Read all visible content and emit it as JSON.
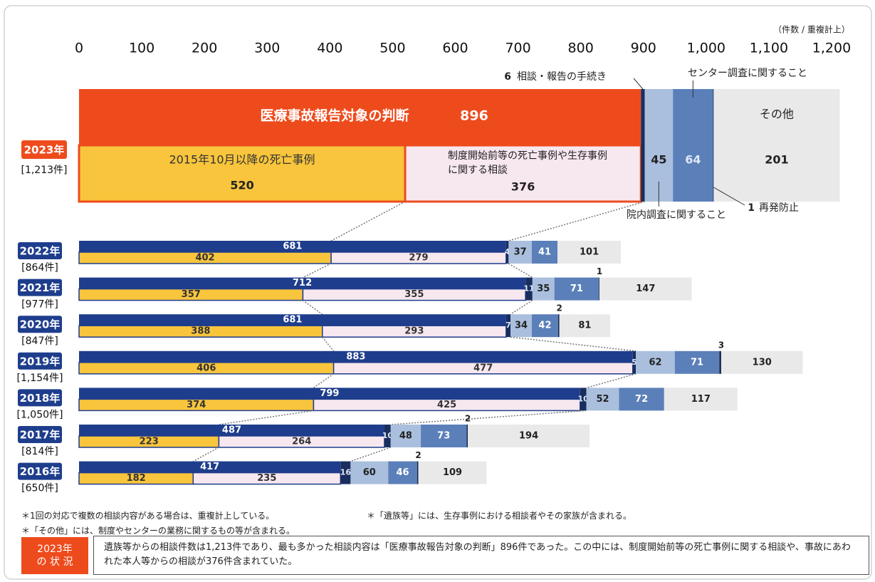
{
  "chart_data": {
    "type": "bar",
    "unit_label": "（件数 / 重複計上）",
    "xlim": [
      0,
      1200
    ],
    "xticks": [
      0,
      100,
      200,
      300,
      400,
      500,
      600,
      700,
      800,
      900,
      {
        "value": 1000,
        "label": "1,000"
      },
      {
        "value": 1100,
        "label": "1,100"
      },
      {
        "value": 1200,
        "label": "1,200"
      }
    ],
    "categories": [
      "2023年",
      "2022年",
      "2021年",
      "2020年",
      "2019年",
      "2018年",
      "2017年",
      "2016年"
    ],
    "count_labels": [
      "[1,213件]",
      "[864件]",
      "[977件]",
      "[847件]",
      "[1,154件]",
      "[1,050件]",
      "[814件]",
      "[650件]"
    ],
    "highlight_color": "#ee4b1d",
    "series": [
      {
        "name": "医療事故報告対象の判断",
        "color": "#1e3d8c",
        "values": [
          896,
          681,
          712,
          681,
          883,
          799,
          487,
          417
        ]
      },
      {
        "name": "2015年10月以降の死亡事例",
        "color": "#f8c53c",
        "values": [
          520,
          402,
          357,
          388,
          406,
          374,
          223,
          182
        ]
      },
      {
        "name": "制度開始前等の死亡事例や生存事例に関する相談",
        "color": "#f7e7ef",
        "values": [
          376,
          279,
          355,
          293,
          477,
          425,
          264,
          235
        ]
      },
      {
        "name": "相談・報告の手続き",
        "color": "#1a2e5e",
        "values": [
          6,
          4,
          11,
          7,
          5,
          10,
          10,
          16
        ]
      },
      {
        "name": "院内調査に関すること",
        "color": "#a9bfdd",
        "values": [
          45,
          37,
          35,
          34,
          62,
          52,
          48,
          60
        ]
      },
      {
        "name": "センター調査に関すること",
        "color": "#5b80b9",
        "values": [
          64,
          41,
          71,
          42,
          71,
          72,
          73,
          46
        ]
      },
      {
        "name": "再発防止",
        "color": "#1b2b50",
        "values": [
          1,
          null,
          1,
          2,
          3,
          null,
          2,
          2
        ]
      },
      {
        "name": "その他",
        "color": "#e9e9e9",
        "values": [
          201,
          101,
          147,
          81,
          130,
          117,
          194,
          109
        ]
      }
    ],
    "notes": [
      "＊1回の対応で複数の相談内容がある場合は、重複計上している。",
      "＊「遺族等」には、生存事例における相談者やその家族が含まれる。",
      "＊「その他」には、制度やセンターの業務に関するもの等が含まれる。"
    ]
  },
  "summary": {
    "label_lines": [
      "2023年",
      "の 状 況"
    ],
    "text": "遺族等からの相談件数は1,213件であり、最も多かった相談内容は「医療事故報告対象の判断」896件であった。この中には、制度開始前等の死亡事例に関する相談や、事故にあわれた本人等からの相談が376件含まれていた。"
  }
}
